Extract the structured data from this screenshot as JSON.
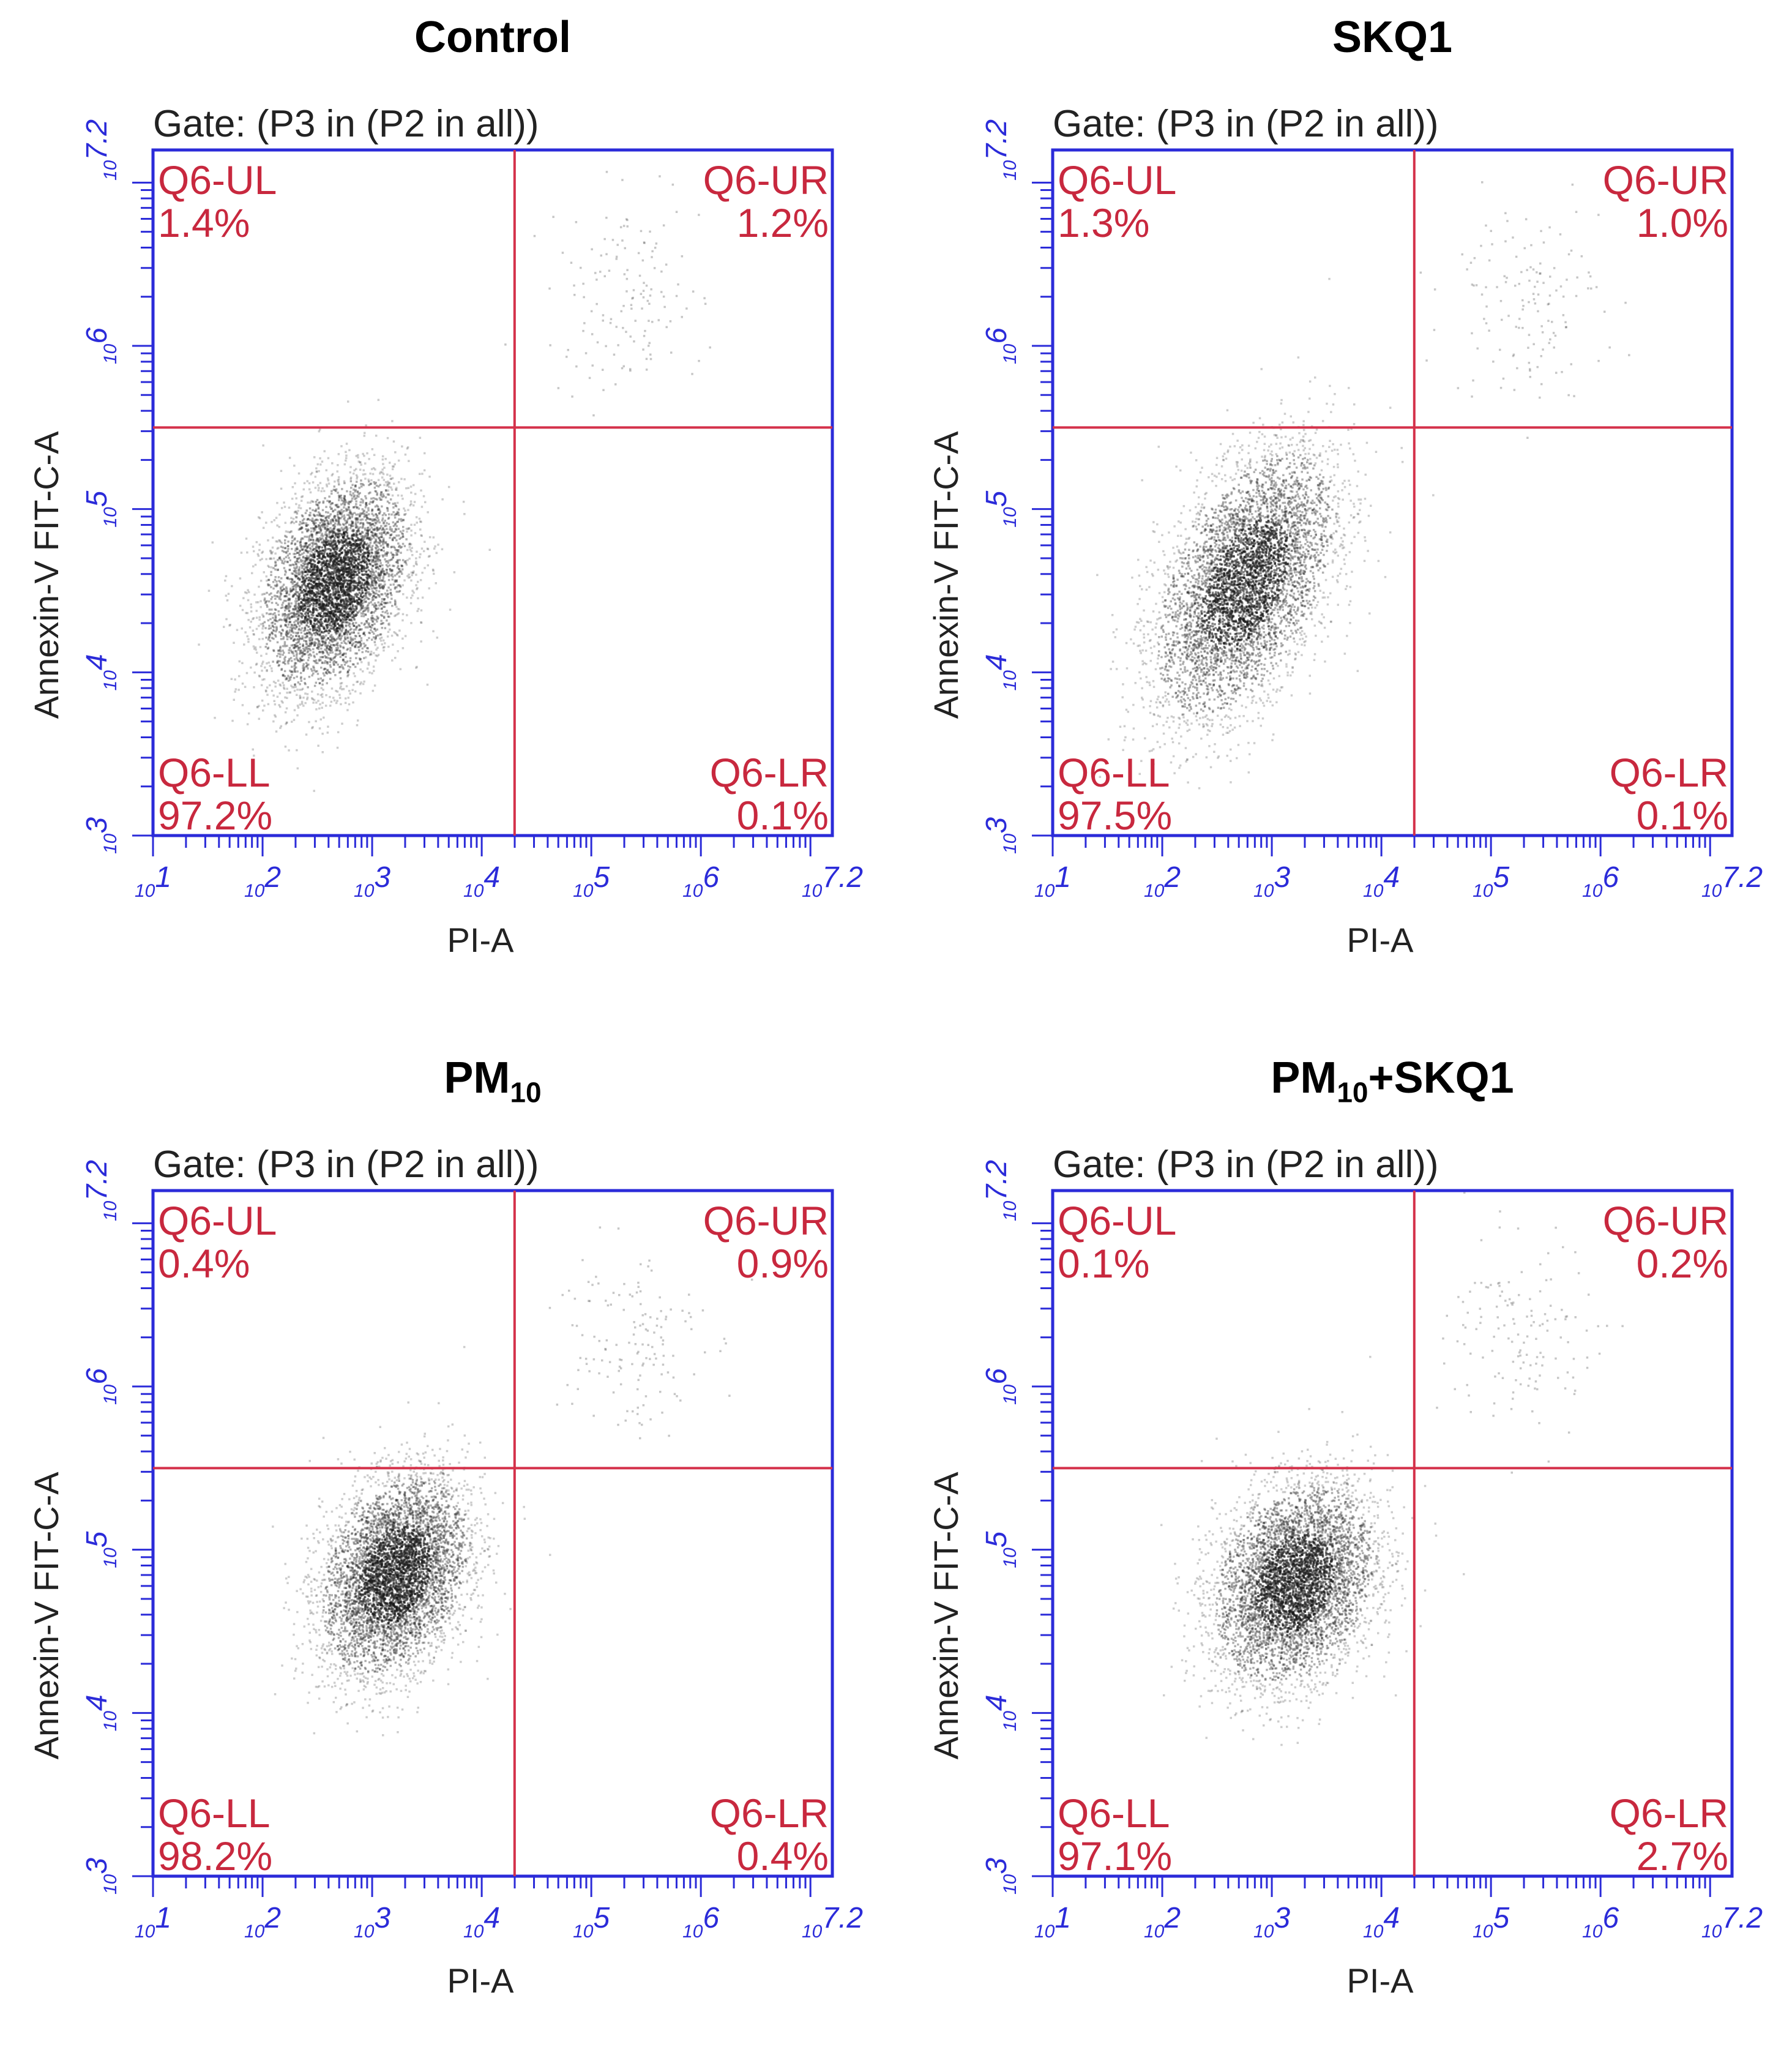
{
  "panels": [
    {
      "title": "Control",
      "title_sub": "",
      "title_suffix": "",
      "gate": "Gate: (P3 in (P2 in all))",
      "quadrants": {
        "UL": {
          "label": "Q6-UL",
          "value": "1.4%"
        },
        "UR": {
          "label": "Q6-UR",
          "value": "1.2%"
        },
        "LL": {
          "label": "Q6-LL",
          "value": "97.2%"
        },
        "LR": {
          "label": "Q6-LR",
          "value": "0.1%"
        }
      },
      "cluster": {
        "x": 2.65,
        "y": 4.55,
        "sx": 0.33,
        "sy": 0.32,
        "rho": 0.35
      },
      "gate_pos": {
        "x": 4.3,
        "y": 5.5
      }
    },
    {
      "title": "SKQ1",
      "title_sub": "",
      "title_suffix": "",
      "gate": "Gate: (P3 in (P2 in all))",
      "quadrants": {
        "UL": {
          "label": "Q6-UL",
          "value": "1.3%"
        },
        "UR": {
          "label": "Q6-UR",
          "value": "1.0%"
        },
        "LL": {
          "label": "Q6-LL",
          "value": "97.5%"
        },
        "LR": {
          "label": "Q6-LR",
          "value": "0.1%"
        }
      },
      "cluster": {
        "x": 2.75,
        "y": 4.55,
        "sx": 0.4,
        "sy": 0.4,
        "rho": 0.5
      },
      "gate_pos": {
        "x": 4.3,
        "y": 5.5
      }
    },
    {
      "title": "PM",
      "title_sub": "10",
      "title_suffix": "",
      "gate": "Gate: (P3 in (P2 in all))",
      "quadrants": {
        "UL": {
          "label": "Q6-UL",
          "value": "0.4%"
        },
        "UR": {
          "label": "Q6-UR",
          "value": "0.9%"
        },
        "LL": {
          "label": "Q6-LL",
          "value": "98.2%"
        },
        "LR": {
          "label": "Q6-LR",
          "value": "0.4%"
        }
      },
      "cluster": {
        "x": 3.2,
        "y": 4.85,
        "sx": 0.33,
        "sy": 0.3,
        "rho": 0.3
      },
      "gate_pos": {
        "x": 4.3,
        "y": 5.5
      }
    },
    {
      "title": "PM",
      "title_sub": "10",
      "title_suffix": "+SKQ1",
      "gate": "Gate: (P3 in (P2 in all))",
      "quadrants": {
        "UL": {
          "label": "Q6-UL",
          "value": "0.1%"
        },
        "UR": {
          "label": "Q6-UR",
          "value": "0.2%"
        },
        "LL": {
          "label": "Q6-LL",
          "value": "97.1%"
        },
        "LR": {
          "label": "Q6-LR",
          "value": "2.7%"
        }
      },
      "cluster": {
        "x": 3.2,
        "y": 4.8,
        "sx": 0.36,
        "sy": 0.3,
        "rho": 0.25
      },
      "gate_pos": {
        "x": 4.3,
        "y": 5.5
      }
    }
  ],
  "chart_data": [
    {
      "type": "scatter",
      "title": "Control",
      "xlabel": "PI-A",
      "ylabel": "Annexin-V FIT-C-A",
      "xlim": [
        1,
        7.2
      ],
      "ylim": [
        3,
        7.2
      ],
      "scale": "log10",
      "xticks": [
        "10^1",
        "10^2",
        "10^3",
        "10^4",
        "10^5",
        "10^6",
        "10^7.2"
      ],
      "yticks": [
        "10^3",
        "10^4",
        "10^5",
        "10^6",
        "10^7.2"
      ],
      "quadrant_gate": {
        "x": 4.3,
        "y": 5.5
      },
      "quadrant_percent": {
        "UL": 1.4,
        "UR": 1.2,
        "LL": 97.2,
        "LR": 0.1
      }
    },
    {
      "type": "scatter",
      "title": "SKQ1",
      "xlabel": "PI-A",
      "ylabel": "Annexin-V FIT-C-A",
      "xlim": [
        1,
        7.2
      ],
      "ylim": [
        3,
        7.2
      ],
      "scale": "log10",
      "xticks": [
        "10^1",
        "10^2",
        "10^3",
        "10^4",
        "10^5",
        "10^6",
        "10^7.2"
      ],
      "yticks": [
        "10^3",
        "10^4",
        "10^5",
        "10^6",
        "10^7.2"
      ],
      "quadrant_gate": {
        "x": 4.3,
        "y": 5.5
      },
      "quadrant_percent": {
        "UL": 1.3,
        "UR": 1.0,
        "LL": 97.5,
        "LR": 0.1
      }
    },
    {
      "type": "scatter",
      "title": "PM10",
      "xlabel": "PI-A",
      "ylabel": "Annexin-V FIT-C-A",
      "xlim": [
        1,
        7.2
      ],
      "ylim": [
        3,
        7.2
      ],
      "scale": "log10",
      "xticks": [
        "10^1",
        "10^2",
        "10^3",
        "10^4",
        "10^5",
        "10^6",
        "10^7.2"
      ],
      "yticks": [
        "10^3",
        "10^4",
        "10^5",
        "10^6",
        "10^7.2"
      ],
      "quadrant_gate": {
        "x": 4.3,
        "y": 5.5
      },
      "quadrant_percent": {
        "UL": 0.4,
        "UR": 0.9,
        "LL": 98.2,
        "LR": 0.4
      }
    },
    {
      "type": "scatter",
      "title": "PM10+SKQ1",
      "xlabel": "PI-A",
      "ylabel": "Annexin-V FIT-C-A",
      "xlim": [
        1,
        7.2
      ],
      "ylim": [
        3,
        7.2
      ],
      "scale": "log10",
      "xticks": [
        "10^1",
        "10^2",
        "10^3",
        "10^4",
        "10^5",
        "10^6",
        "10^7.2"
      ],
      "yticks": [
        "10^3",
        "10^4",
        "10^5",
        "10^6",
        "10^7.2"
      ],
      "quadrant_gate": {
        "x": 4.3,
        "y": 5.5
      },
      "quadrant_percent": {
        "UL": 0.1,
        "UR": 0.2,
        "LL": 97.1,
        "LR": 2.7
      }
    }
  ],
  "axes": {
    "xlabel": "PI-A",
    "ylabel": "Annexin-V FIT-C-A",
    "xticks": [
      {
        "v": 1,
        "base": "10",
        "exp": "1"
      },
      {
        "v": 2,
        "base": "10",
        "exp": "2"
      },
      {
        "v": 3,
        "base": "10",
        "exp": "3"
      },
      {
        "v": 4,
        "base": "10",
        "exp": "4"
      },
      {
        "v": 5,
        "base": "10",
        "exp": "5"
      },
      {
        "v": 6,
        "base": "10",
        "exp": "6"
      },
      {
        "v": 7.2,
        "base": "10",
        "exp": "7.2"
      }
    ],
    "yticks": [
      {
        "v": 3,
        "base": "10",
        "exp": "3"
      },
      {
        "v": 4,
        "base": "10",
        "exp": "4"
      },
      {
        "v": 5,
        "base": "10",
        "exp": "5"
      },
      {
        "v": 6,
        "base": "10",
        "exp": "6"
      },
      {
        "v": 7.2,
        "base": "10",
        "exp": "7.2"
      }
    ],
    "xlim": [
      1,
      7.2
    ],
    "ylim": [
      3,
      7.2
    ]
  },
  "colors": {
    "axis": "#2b2bd9",
    "gate": "#d4314a",
    "label": "#c8283e",
    "dots": "#1a1a1a",
    "title": "#000000"
  }
}
